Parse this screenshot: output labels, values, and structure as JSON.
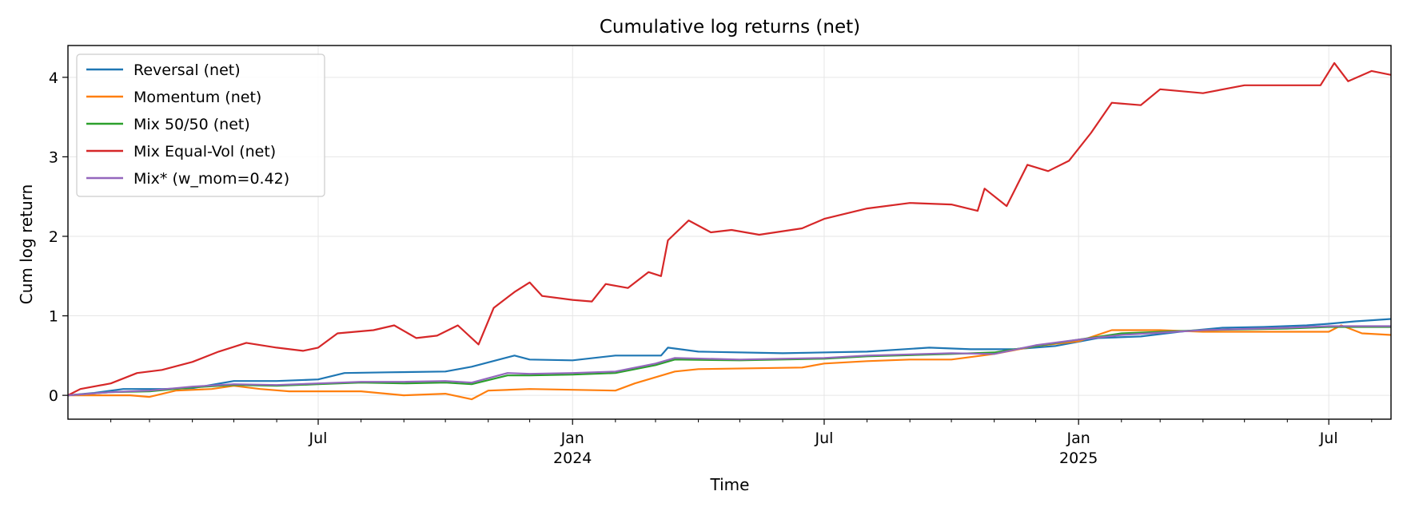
{
  "chart_data": {
    "type": "line",
    "title": "Cumulative log returns (net)",
    "xlabel": "Time",
    "ylabel": "Cum log return",
    "xlim": [
      "2023-01-01",
      "2025-08-15"
    ],
    "ylim": [
      -0.3,
      4.4
    ],
    "grid": true,
    "legend_position": "top-left",
    "y_ticks": [
      0,
      1,
      2,
      3,
      4
    ],
    "x_ticks": [
      {
        "date": "2023-07-01",
        "label": "Jul",
        "sub": ""
      },
      {
        "date": "2024-01-01",
        "label": "Jan",
        "sub": "2024"
      },
      {
        "date": "2024-07-01",
        "label": "Jul",
        "sub": ""
      },
      {
        "date": "2025-01-01",
        "label": "Jan",
        "sub": "2025"
      },
      {
        "date": "2025-07-01",
        "label": "Jul",
        "sub": ""
      }
    ],
    "minor_ticks": [
      "2023-02-01",
      "2023-03-01",
      "2023-04-01",
      "2023-05-01",
      "2023-06-01",
      "2023-08-01",
      "2023-09-01",
      "2023-10-01",
      "2023-11-01",
      "2023-12-01",
      "2024-02-01",
      "2024-03-01",
      "2024-04-01",
      "2024-05-01",
      "2024-06-01",
      "2024-08-01",
      "2024-09-01",
      "2024-10-01",
      "2024-11-01",
      "2024-12-01",
      "2025-02-01",
      "2025-03-01",
      "2025-04-01",
      "2025-05-01",
      "2025-06-01",
      "2025-08-01"
    ],
    "series": [
      {
        "name": "Reversal (net)",
        "color": "#1f77b4",
        "points": [
          [
            "2023-01-01",
            0
          ],
          [
            "2023-01-20",
            0.03
          ],
          [
            "2023-02-10",
            0.08
          ],
          [
            "2023-03-10",
            0.08
          ],
          [
            "2023-04-01",
            0.09
          ],
          [
            "2023-05-01",
            0.18
          ],
          [
            "2023-06-01",
            0.18
          ],
          [
            "2023-07-01",
            0.2
          ],
          [
            "2023-07-20",
            0.28
          ],
          [
            "2023-08-20",
            0.29
          ],
          [
            "2023-10-01",
            0.3
          ],
          [
            "2023-10-20",
            0.36
          ],
          [
            "2023-11-20",
            0.5
          ],
          [
            "2023-12-01",
            0.45
          ],
          [
            "2024-01-01",
            0.44
          ],
          [
            "2024-02-01",
            0.5
          ],
          [
            "2024-03-05",
            0.5
          ],
          [
            "2024-03-10",
            0.6
          ],
          [
            "2024-04-01",
            0.55
          ],
          [
            "2024-06-01",
            0.53
          ],
          [
            "2024-08-01",
            0.55
          ],
          [
            "2024-09-15",
            0.6
          ],
          [
            "2024-10-15",
            0.58
          ],
          [
            "2024-11-15",
            0.58
          ],
          [
            "2024-12-15",
            0.62
          ],
          [
            "2025-01-15",
            0.72
          ],
          [
            "2025-02-15",
            0.74
          ],
          [
            "2025-03-15",
            0.8
          ],
          [
            "2025-04-15",
            0.85
          ],
          [
            "2025-05-15",
            0.86
          ],
          [
            "2025-06-15",
            0.88
          ],
          [
            "2025-07-01",
            0.9
          ],
          [
            "2025-07-20",
            0.93
          ],
          [
            "2025-08-15",
            0.96
          ]
        ]
      },
      {
        "name": "Momentum (net)",
        "color": "#ff7f0e",
        "points": [
          [
            "2023-01-01",
            0
          ],
          [
            "2023-02-15",
            0
          ],
          [
            "2023-03-01",
            -0.02
          ],
          [
            "2023-03-20",
            0.06
          ],
          [
            "2023-04-15",
            0.08
          ],
          [
            "2023-05-01",
            0.12
          ],
          [
            "2023-05-20",
            0.08
          ],
          [
            "2023-06-10",
            0.05
          ],
          [
            "2023-08-01",
            0.05
          ],
          [
            "2023-09-01",
            0
          ],
          [
            "2023-10-01",
            0.02
          ],
          [
            "2023-10-20",
            -0.05
          ],
          [
            "2023-11-01",
            0.06
          ],
          [
            "2023-12-01",
            0.08
          ],
          [
            "2024-01-01",
            0.07
          ],
          [
            "2024-02-01",
            0.06
          ],
          [
            "2024-02-15",
            0.15
          ],
          [
            "2024-03-15",
            0.3
          ],
          [
            "2024-04-01",
            0.33
          ],
          [
            "2024-06-15",
            0.35
          ],
          [
            "2024-07-01",
            0.4
          ],
          [
            "2024-08-01",
            0.43
          ],
          [
            "2024-09-01",
            0.45
          ],
          [
            "2024-10-01",
            0.45
          ],
          [
            "2024-11-01",
            0.52
          ],
          [
            "2024-12-01",
            0.62
          ],
          [
            "2025-01-01",
            0.68
          ],
          [
            "2025-01-25",
            0.82
          ],
          [
            "2025-03-01",
            0.82
          ],
          [
            "2025-04-01",
            0.8
          ],
          [
            "2025-06-01",
            0.8
          ],
          [
            "2025-07-01",
            0.8
          ],
          [
            "2025-07-10",
            0.88
          ],
          [
            "2025-07-25",
            0.78
          ],
          [
            "2025-08-15",
            0.76
          ]
        ]
      },
      {
        "name": "Mix 50/50 (net)",
        "color": "#2ca02c",
        "points": [
          [
            "2023-01-01",
            0
          ],
          [
            "2023-02-01",
            0.04
          ],
          [
            "2023-03-01",
            0.05
          ],
          [
            "2023-04-01",
            0.1
          ],
          [
            "2023-05-01",
            0.13
          ],
          [
            "2023-06-01",
            0.12
          ],
          [
            "2023-07-01",
            0.14
          ],
          [
            "2023-08-01",
            0.16
          ],
          [
            "2023-09-01",
            0.15
          ],
          [
            "2023-10-01",
            0.16
          ],
          [
            "2023-10-20",
            0.14
          ],
          [
            "2023-11-15",
            0.25
          ],
          [
            "2023-12-01",
            0.25
          ],
          [
            "2024-01-01",
            0.26
          ],
          [
            "2024-02-01",
            0.28
          ],
          [
            "2024-03-01",
            0.38
          ],
          [
            "2024-03-15",
            0.45
          ],
          [
            "2024-05-01",
            0.44
          ],
          [
            "2024-07-01",
            0.46
          ],
          [
            "2024-08-01",
            0.49
          ],
          [
            "2024-10-01",
            0.52
          ],
          [
            "2024-11-01",
            0.54
          ],
          [
            "2024-12-01",
            0.62
          ],
          [
            "2025-01-01",
            0.7
          ],
          [
            "2025-02-01",
            0.78
          ],
          [
            "2025-04-01",
            0.82
          ],
          [
            "2025-06-01",
            0.84
          ],
          [
            "2025-07-01",
            0.86
          ],
          [
            "2025-08-15",
            0.86
          ]
        ]
      },
      {
        "name": "Mix Equal-Vol (net)",
        "color": "#d62728",
        "points": [
          [
            "2023-01-01",
            0
          ],
          [
            "2023-01-10",
            0.08
          ],
          [
            "2023-02-01",
            0.15
          ],
          [
            "2023-02-20",
            0.28
          ],
          [
            "2023-03-10",
            0.32
          ],
          [
            "2023-04-01",
            0.42
          ],
          [
            "2023-04-20",
            0.55
          ],
          [
            "2023-05-10",
            0.66
          ],
          [
            "2023-06-01",
            0.6
          ],
          [
            "2023-06-20",
            0.56
          ],
          [
            "2023-07-01",
            0.6
          ],
          [
            "2023-07-15",
            0.78
          ],
          [
            "2023-08-10",
            0.82
          ],
          [
            "2023-08-25",
            0.88
          ],
          [
            "2023-09-10",
            0.72
          ],
          [
            "2023-09-25",
            0.75
          ],
          [
            "2023-10-10",
            0.88
          ],
          [
            "2023-10-25",
            0.64
          ],
          [
            "2023-11-05",
            1.1
          ],
          [
            "2023-11-20",
            1.3
          ],
          [
            "2023-12-01",
            1.42
          ],
          [
            "2023-12-10",
            1.25
          ],
          [
            "2024-01-01",
            1.2
          ],
          [
            "2024-01-15",
            1.18
          ],
          [
            "2024-01-25",
            1.4
          ],
          [
            "2024-02-10",
            1.35
          ],
          [
            "2024-02-25",
            1.55
          ],
          [
            "2024-03-05",
            1.5
          ],
          [
            "2024-03-10",
            1.95
          ],
          [
            "2024-03-25",
            2.2
          ],
          [
            "2024-04-10",
            2.05
          ],
          [
            "2024-04-25",
            2.08
          ],
          [
            "2024-05-15",
            2.02
          ],
          [
            "2024-06-15",
            2.1
          ],
          [
            "2024-07-01",
            2.22
          ],
          [
            "2024-08-01",
            2.35
          ],
          [
            "2024-09-01",
            2.42
          ],
          [
            "2024-10-01",
            2.4
          ],
          [
            "2024-10-20",
            2.32
          ],
          [
            "2024-10-25",
            2.6
          ],
          [
            "2024-11-10",
            2.38
          ],
          [
            "2024-11-25",
            2.9
          ],
          [
            "2024-12-10",
            2.82
          ],
          [
            "2024-12-25",
            2.95
          ],
          [
            "2025-01-10",
            3.3
          ],
          [
            "2025-01-25",
            3.68
          ],
          [
            "2025-02-15",
            3.65
          ],
          [
            "2025-03-01",
            3.85
          ],
          [
            "2025-04-01",
            3.8
          ],
          [
            "2025-05-01",
            3.9
          ],
          [
            "2025-06-01",
            3.9
          ],
          [
            "2025-06-25",
            3.9
          ],
          [
            "2025-07-05",
            4.18
          ],
          [
            "2025-07-15",
            3.95
          ],
          [
            "2025-08-01",
            4.08
          ],
          [
            "2025-08-15",
            4.03
          ]
        ]
      },
      {
        "name": "Mix* (w_mom=0.42)",
        "color": "#9467bd",
        "points": [
          [
            "2023-01-01",
            0
          ],
          [
            "2023-02-01",
            0.04
          ],
          [
            "2023-03-01",
            0.06
          ],
          [
            "2023-04-01",
            0.11
          ],
          [
            "2023-05-01",
            0.14
          ],
          [
            "2023-06-01",
            0.13
          ],
          [
            "2023-07-01",
            0.15
          ],
          [
            "2023-08-01",
            0.17
          ],
          [
            "2023-09-01",
            0.17
          ],
          [
            "2023-10-01",
            0.18
          ],
          [
            "2023-10-20",
            0.16
          ],
          [
            "2023-11-15",
            0.28
          ],
          [
            "2023-12-01",
            0.27
          ],
          [
            "2024-01-01",
            0.28
          ],
          [
            "2024-02-01",
            0.3
          ],
          [
            "2024-03-01",
            0.4
          ],
          [
            "2024-03-15",
            0.47
          ],
          [
            "2024-05-01",
            0.45
          ],
          [
            "2024-07-01",
            0.47
          ],
          [
            "2024-08-01",
            0.5
          ],
          [
            "2024-10-01",
            0.53
          ],
          [
            "2024-11-01",
            0.52
          ],
          [
            "2024-12-01",
            0.63
          ],
          [
            "2025-01-01",
            0.7
          ],
          [
            "2025-02-01",
            0.76
          ],
          [
            "2025-04-01",
            0.82
          ],
          [
            "2025-06-01",
            0.85
          ],
          [
            "2025-07-01",
            0.87
          ],
          [
            "2025-08-15",
            0.87
          ]
        ]
      }
    ]
  }
}
